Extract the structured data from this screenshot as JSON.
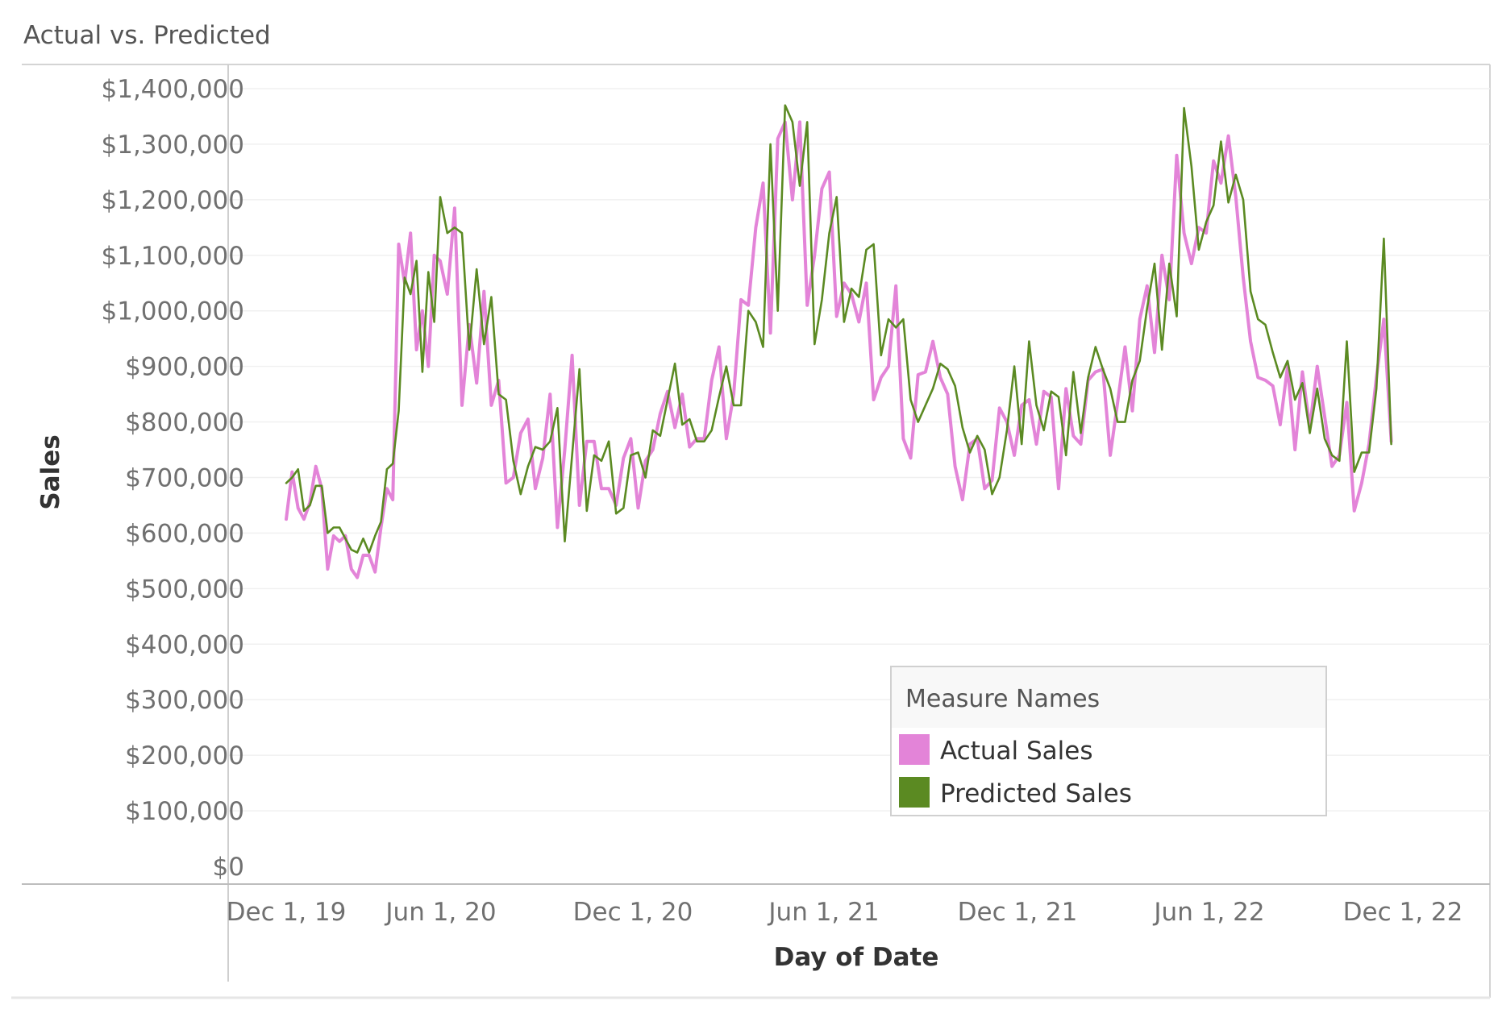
{
  "chart_data": {
    "type": "line",
    "title": "Actual vs. Predicted",
    "xlabel": "Day of Date",
    "ylabel": "Sales",
    "ylim": [
      0,
      1400000
    ],
    "yticks": [
      "$0",
      "$100,000",
      "$200,000",
      "$300,000",
      "$400,000",
      "$500,000",
      "$600,000",
      "$700,000",
      "$800,000",
      "$900,000",
      "$1,000,000",
      "$1,100,000",
      "$1,200,000",
      "$1,300,000",
      "$1,400,000"
    ],
    "xticks": [
      "Dec 1, 19",
      "Jun 1, 20",
      "Dec 1, 20",
      "Jun 1, 21",
      "Dec 1, 21",
      "Jun 1, 22",
      "Dec 1, 22"
    ],
    "grid": "horizontal",
    "legend": {
      "title": "Measure Names",
      "placement": "bottom-right",
      "items": [
        {
          "label": "Actual Sales",
          "color": "#E384D8"
        },
        {
          "label": "Predicted Sales",
          "color": "#5B8A22"
        }
      ]
    },
    "series": [
      {
        "name": "Actual Sales",
        "color": "#E384D8",
        "values": [
          625000,
          710000,
          645000,
          625000,
          655000,
          720000,
          680000,
          535000,
          595000,
          585000,
          595000,
          535000,
          520000,
          560000,
          560000,
          530000,
          610000,
          680000,
          660000,
          1120000,
          1050000,
          1140000,
          930000,
          1000000,
          900000,
          1100000,
          1090000,
          1030000,
          1185000,
          830000,
          975000,
          870000,
          1035000,
          830000,
          875000,
          690000,
          700000,
          780000,
          805000,
          680000,
          735000,
          850000,
          610000,
          750000,
          920000,
          650000,
          765000,
          765000,
          680000,
          680000,
          650000,
          735000,
          770000,
          645000,
          730000,
          750000,
          815000,
          855000,
          790000,
          850000,
          755000,
          770000,
          770000,
          875000,
          935000,
          770000,
          850000,
          1020000,
          1010000,
          1150000,
          1230000,
          960000,
          1310000,
          1340000,
          1200000,
          1340000,
          1010000,
          1100000,
          1220000,
          1250000,
          990000,
          1050000,
          1030000,
          980000,
          1050000,
          840000,
          880000,
          900000,
          1045000,
          770000,
          735000,
          885000,
          890000,
          945000,
          880000,
          850000,
          720000,
          660000,
          760000,
          770000,
          680000,
          695000,
          825000,
          800000,
          740000,
          830000,
          840000,
          760000,
          855000,
          845000,
          680000,
          860000,
          775000,
          760000,
          875000,
          890000,
          895000,
          740000,
          835000,
          935000,
          820000,
          985000,
          1045000,
          925000,
          1100000,
          1020000,
          1280000,
          1140000,
          1085000,
          1150000,
          1140000,
          1270000,
          1230000,
          1315000,
          1205000,
          1060000,
          945000,
          880000,
          875000,
          865000,
          795000,
          900000,
          750000,
          890000,
          790000,
          900000,
          810000,
          720000,
          740000,
          835000,
          640000,
          690000,
          760000,
          880000,
          985000,
          765000
        ]
      },
      {
        "name": "Predicted Sales",
        "color": "#5B8A22",
        "values": [
          690000,
          700000,
          715000,
          640000,
          650000,
          685000,
          685000,
          600000,
          610000,
          610000,
          590000,
          570000,
          565000,
          590000,
          565000,
          595000,
          620000,
          715000,
          725000,
          820000,
          1060000,
          1030000,
          1090000,
          890000,
          1070000,
          980000,
          1205000,
          1140000,
          1150000,
          1140000,
          930000,
          1075000,
          940000,
          1025000,
          850000,
          840000,
          730000,
          670000,
          720000,
          755000,
          750000,
          765000,
          825000,
          585000,
          740000,
          895000,
          640000,
          740000,
          730000,
          765000,
          635000,
          645000,
          740000,
          745000,
          700000,
          785000,
          775000,
          840000,
          905000,
          795000,
          805000,
          765000,
          765000,
          785000,
          845000,
          900000,
          830000,
          830000,
          1000000,
          980000,
          935000,
          1300000,
          1000000,
          1370000,
          1340000,
          1225000,
          1340000,
          940000,
          1020000,
          1140000,
          1205000,
          980000,
          1040000,
          1025000,
          1110000,
          1120000,
          920000,
          985000,
          970000,
          985000,
          840000,
          800000,
          830000,
          860000,
          905000,
          895000,
          865000,
          790000,
          745000,
          775000,
          750000,
          670000,
          700000,
          785000,
          900000,
          760000,
          945000,
          830000,
          785000,
          855000,
          845000,
          740000,
          890000,
          780000,
          880000,
          935000,
          895000,
          860000,
          800000,
          800000,
          875000,
          910000,
          1005000,
          1085000,
          930000,
          1085000,
          990000,
          1365000,
          1260000,
          1110000,
          1160000,
          1190000,
          1305000,
          1195000,
          1245000,
          1200000,
          1035000,
          985000,
          975000,
          925000,
          880000,
          910000,
          840000,
          870000,
          780000,
          860000,
          770000,
          740000,
          730000,
          945000,
          710000,
          745000,
          745000,
          860000,
          1130000,
          760000
        ]
      }
    ]
  }
}
